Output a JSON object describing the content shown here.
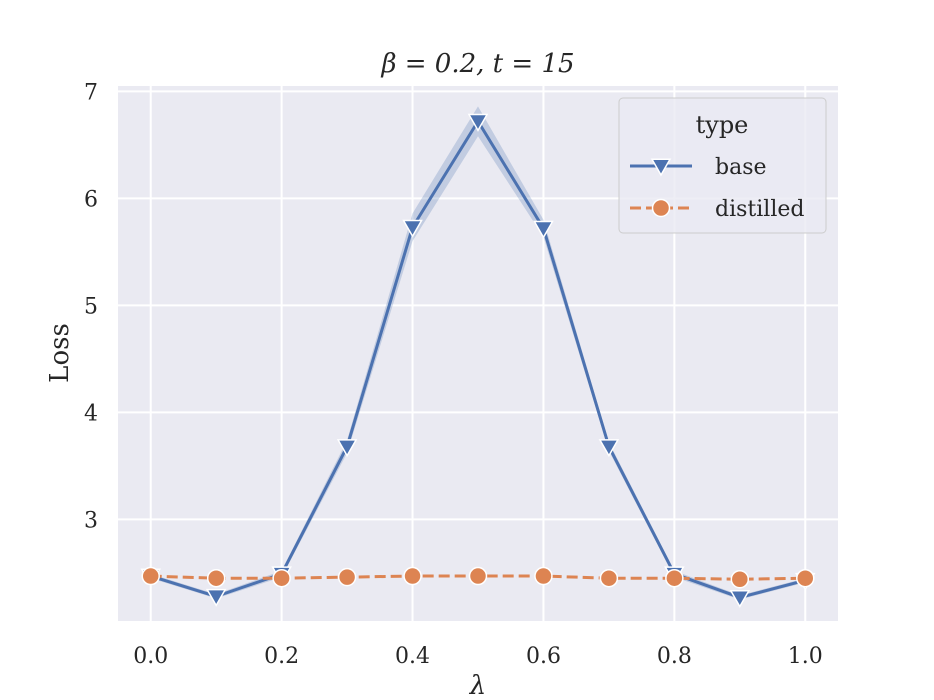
{
  "colors": {
    "plot_bg": "#eaeaf2",
    "grid": "#ffffff",
    "base": "#4c72b0",
    "distilled": "#dd8452",
    "band": "#4c72b0"
  },
  "chart_data": {
    "type": "line",
    "title": "β = 0.2, t = 15",
    "xlabel": "λ",
    "ylabel": "Loss",
    "xlim": [
      -0.05,
      1.05
    ],
    "ylim": [
      2.05,
      7.05
    ],
    "grid": true,
    "x_ticks": [
      "0.0",
      "0.2",
      "0.4",
      "0.6",
      "0.8",
      "1.0"
    ],
    "y_ticks": [
      "3",
      "4",
      "5",
      "6",
      "7"
    ],
    "legend": {
      "title": "type",
      "placement": "upper right",
      "entries": [
        "base",
        "distilled"
      ]
    },
    "x": [
      0.0,
      0.1,
      0.2,
      0.3,
      0.4,
      0.5,
      0.6,
      0.7,
      0.8,
      0.9,
      1.0
    ],
    "series": [
      {
        "name": "base",
        "marker": "triangle-down",
        "linestyle": "solid",
        "values": [
          2.47,
          2.28,
          2.49,
          3.68,
          5.73,
          6.72,
          5.72,
          3.68,
          2.49,
          2.27,
          2.43
        ],
        "ci_low": [
          2.45,
          2.26,
          2.46,
          3.62,
          5.6,
          6.58,
          5.64,
          3.64,
          2.46,
          2.25,
          2.41
        ],
        "ci_high": [
          2.49,
          2.3,
          2.52,
          3.74,
          5.86,
          6.86,
          5.8,
          3.72,
          2.52,
          2.29,
          2.45
        ]
      },
      {
        "name": "distilled",
        "marker": "circle",
        "linestyle": "dashed",
        "values": [
          2.47,
          2.45,
          2.45,
          2.46,
          2.47,
          2.47,
          2.47,
          2.45,
          2.45,
          2.44,
          2.45
        ]
      }
    ]
  }
}
